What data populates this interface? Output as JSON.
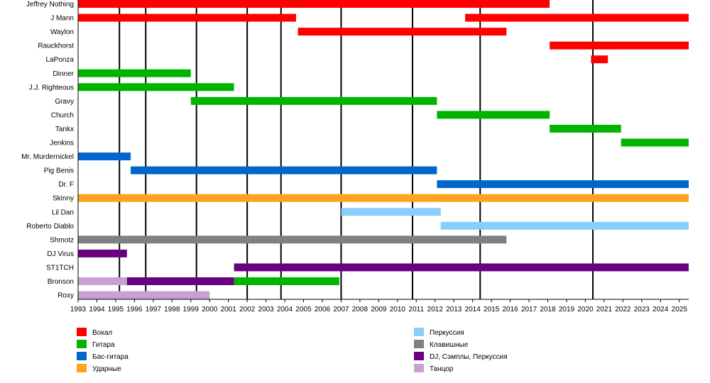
{
  "chart_data": {
    "type": "timeline",
    "title": "",
    "xlabel": "",
    "ylabel": "",
    "xlim": [
      1993,
      2025.5
    ],
    "grid": true,
    "legend_placement": "bottom",
    "year_ticks": [
      "1993",
      "1994",
      "1995",
      "1996",
      "1997",
      "1998",
      "1999",
      "2000",
      "2001",
      "2002",
      "2003",
      "2004",
      "2005",
      "2006",
      "2007",
      "2008",
      "2009",
      "2010",
      "2011",
      "2012",
      "2013",
      "2014",
      "2015",
      "2016",
      "2017",
      "2018",
      "2019",
      "2020",
      "2021",
      "2022",
      "2023",
      "2024",
      "2025"
    ],
    "album_lines": [
      1995.2,
      1996.6,
      1999.3,
      2002.0,
      2003.8,
      2007.0,
      2010.8,
      2014.4,
      2020.4
    ],
    "members": [
      {
        "name": "Jeffrey Nothing",
        "bars": [
          {
            "start": 1993.0,
            "end": 2018.1,
            "role": "vocals"
          }
        ]
      },
      {
        "name": "J Mann",
        "bars": [
          {
            "start": 1993.0,
            "end": 2004.6,
            "role": "vocals"
          },
          {
            "start": 2013.6,
            "end": 2025.5,
            "role": "vocals"
          }
        ]
      },
      {
        "name": "Waylon",
        "bars": [
          {
            "start": 2004.7,
            "end": 2015.8,
            "role": "vocals"
          }
        ]
      },
      {
        "name": "Rauckhorst",
        "bars": [
          {
            "start": 2018.1,
            "end": 2025.5,
            "role": "vocals"
          }
        ]
      },
      {
        "name": "LaPonza",
        "bars": [
          {
            "start": 2020.3,
            "end": 2021.2,
            "role": "vocals"
          }
        ]
      },
      {
        "name": "Dinner",
        "bars": [
          {
            "start": 1993.0,
            "end": 1999.0,
            "role": "guitar"
          }
        ]
      },
      {
        "name": "J.J. Righteous",
        "bars": [
          {
            "start": 1993.0,
            "end": 2001.3,
            "role": "guitar"
          }
        ]
      },
      {
        "name": "Gravy",
        "bars": [
          {
            "start": 1999.0,
            "end": 2012.1,
            "role": "guitar"
          }
        ]
      },
      {
        "name": "Church",
        "bars": [
          {
            "start": 2012.1,
            "end": 2018.1,
            "role": "guitar"
          }
        ]
      },
      {
        "name": "Tankx",
        "bars": [
          {
            "start": 2018.1,
            "end": 2021.9,
            "role": "guitar"
          }
        ]
      },
      {
        "name": "Jenkins",
        "bars": [
          {
            "start": 2021.9,
            "end": 2025.5,
            "role": "guitar"
          }
        ]
      },
      {
        "name": "Mr. Murdernickel",
        "bars": [
          {
            "start": 1993.0,
            "end": 1995.8,
            "role": "bass"
          }
        ]
      },
      {
        "name": "Pig Benis",
        "bars": [
          {
            "start": 1995.8,
            "end": 2012.1,
            "role": "bass"
          }
        ]
      },
      {
        "name": "Dr. F",
        "bars": [
          {
            "start": 2012.1,
            "end": 2025.5,
            "role": "bass"
          }
        ]
      },
      {
        "name": "Skinny",
        "bars": [
          {
            "start": 1993.0,
            "end": 2025.5,
            "role": "drums"
          }
        ]
      },
      {
        "name": "Lil Dan",
        "bars": [
          {
            "start": 2007.0,
            "end": 2012.3,
            "role": "percussion"
          }
        ]
      },
      {
        "name": "Roberto Diablo",
        "bars": [
          {
            "start": 2012.3,
            "end": 2025.5,
            "role": "percussion"
          }
        ]
      },
      {
        "name": "Shmotz",
        "bars": [
          {
            "start": 1993.0,
            "end": 2015.8,
            "role": "keyboards"
          }
        ]
      },
      {
        "name": "DJ Virus",
        "bars": [
          {
            "start": 1993.0,
            "end": 1995.6,
            "role": "dj"
          }
        ]
      },
      {
        "name": "ST1TCH",
        "bars": [
          {
            "start": 2001.3,
            "end": 2025.5,
            "role": "dj"
          }
        ]
      },
      {
        "name": "Bronson",
        "bars": [
          {
            "start": 1993.0,
            "end": 1995.6,
            "role": "dancer"
          },
          {
            "start": 1995.6,
            "end": 2001.3,
            "role": "dj"
          },
          {
            "start": 2001.3,
            "end": 2006.9,
            "role": "guitar"
          }
        ]
      },
      {
        "name": "Roxy",
        "bars": [
          {
            "start": 1993.0,
            "end": 2000.0,
            "role": "dancer"
          }
        ]
      }
    ],
    "legend": [
      {
        "role": "vocals",
        "label": "Вокал",
        "color": "#ff0000"
      },
      {
        "role": "guitar",
        "label": "Гитара",
        "color": "#00b400"
      },
      {
        "role": "bass",
        "label": "Бас-гитара",
        "color": "#0066cc"
      },
      {
        "role": "drums",
        "label": "Ударные",
        "color": "#ffa31a"
      },
      {
        "role": "percussion",
        "label": "Перкуссия",
        "color": "#87cefa"
      },
      {
        "role": "keyboards",
        "label": "Клавишные",
        "color": "#808080"
      },
      {
        "role": "dj",
        "label": "DJ, Сэмплы, Перкуссия",
        "color": "#6a0080"
      },
      {
        "role": "dancer",
        "label": "Танцор",
        "color": "#c8a0d2"
      }
    ]
  }
}
